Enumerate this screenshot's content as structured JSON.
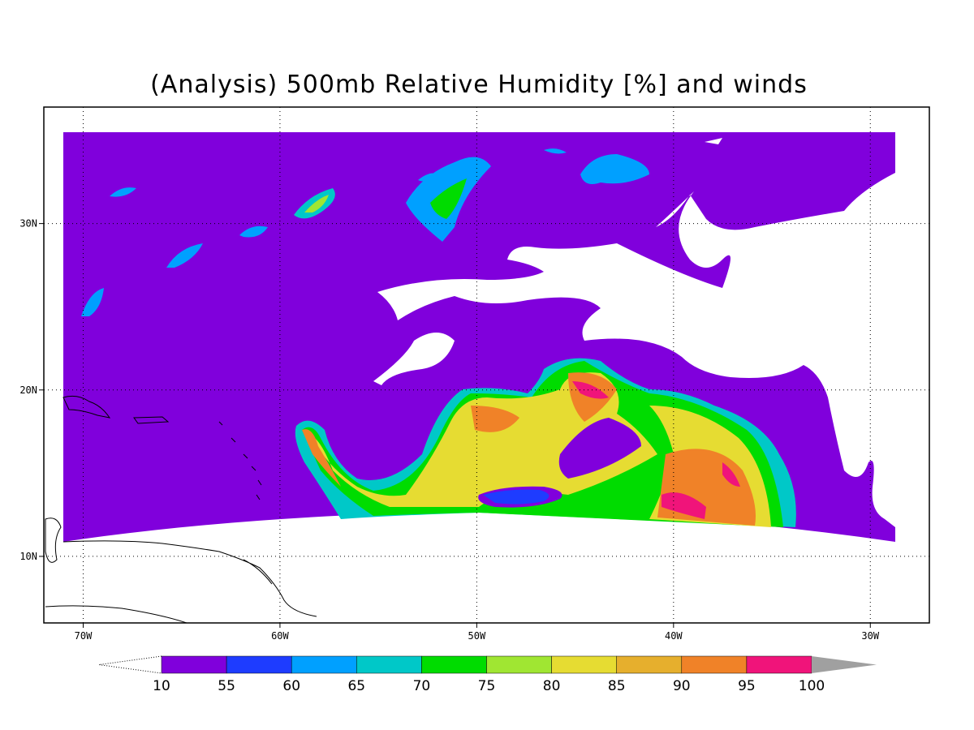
{
  "title": "(Analysis) 500mb Relative Humidity [%] and winds",
  "map": {
    "lon_range": [
      -72,
      -27
    ],
    "lat_range": [
      6,
      37
    ],
    "lon_ticks": [
      {
        "value": -70,
        "label": "70W"
      },
      {
        "value": -60,
        "label": "60W"
      },
      {
        "value": -50,
        "label": "50W"
      },
      {
        "value": -40,
        "label": "40W"
      },
      {
        "value": -30,
        "label": "30W"
      }
    ],
    "lat_ticks": [
      {
        "value": 30,
        "label": "30N"
      },
      {
        "value": 20,
        "label": "20N"
      },
      {
        "value": 10,
        "label": "10N"
      }
    ]
  },
  "colorbar": {
    "levels": [
      10,
      55,
      60,
      65,
      70,
      75,
      80,
      85,
      90,
      95,
      100
    ],
    "colors": [
      "#8000dc",
      "#1e3cff",
      "#00a0ff",
      "#00c8c8",
      "#00dc00",
      "#a0e632",
      "#e6dc32",
      "#e6af2d",
      "#f08228",
      "#f0147a"
    ],
    "over_color": "#a0a0a0"
  }
}
